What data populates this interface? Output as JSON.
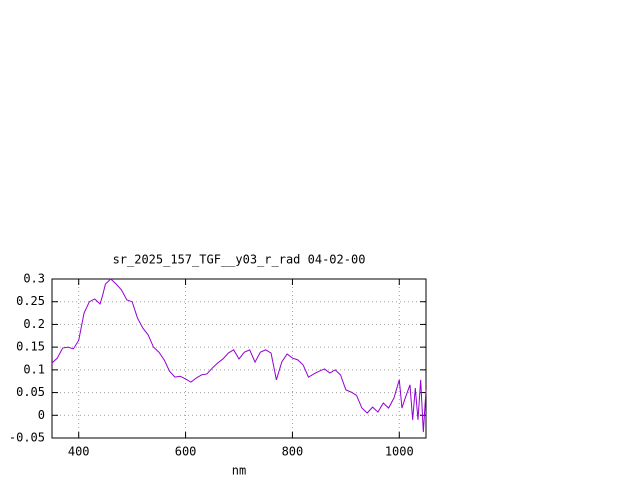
{
  "chart_data": {
    "type": "line",
    "title": "sr_2025_157_TGF__y03_r_rad 04-02-00",
    "x_label": "nm",
    "x": [
      350,
      360,
      370,
      380,
      390,
      400,
      410,
      420,
      430,
      440,
      445,
      450,
      460,
      470,
      480,
      490,
      500,
      510,
      520,
      530,
      540,
      550,
      560,
      570,
      580,
      590,
      600,
      610,
      620,
      630,
      640,
      650,
      660,
      670,
      680,
      690,
      700,
      710,
      720,
      730,
      740,
      750,
      760,
      770,
      780,
      790,
      800,
      810,
      820,
      830,
      840,
      850,
      860,
      870,
      880,
      890,
      900,
      910,
      920,
      930,
      940,
      950,
      960,
      970,
      980,
      990,
      1000,
      1005,
      1010,
      1020,
      1025,
      1030,
      1035,
      1040,
      1045,
      1050
    ],
    "series": [
      {
        "color": "#9400d3",
        "values": [
          0.115,
          0.126,
          0.148,
          0.15,
          0.146,
          0.165,
          0.225,
          0.25,
          0.256,
          0.245,
          0.265,
          0.289,
          0.3,
          0.289,
          0.276,
          0.254,
          0.25,
          0.214,
          0.192,
          0.177,
          0.15,
          0.139,
          0.122,
          0.097,
          0.084,
          0.086,
          0.08,
          0.073,
          0.082,
          0.089,
          0.091,
          0.104,
          0.115,
          0.124,
          0.137,
          0.144,
          0.124,
          0.139,
          0.144,
          0.117,
          0.139,
          0.144,
          0.137,
          0.078,
          0.117,
          0.135,
          0.126,
          0.122,
          0.111,
          0.084,
          0.091,
          0.097,
          0.102,
          0.093,
          0.1,
          0.089,
          0.056,
          0.051,
          0.044,
          0.016,
          0.005,
          0.018,
          0.007,
          0.027,
          0.016,
          0.038,
          0.078,
          0.016,
          0.034,
          0.067,
          -0.01,
          0.06,
          -0.01,
          0.078,
          -0.037,
          0.056
        ]
      }
    ],
    "xlim": [
      350,
      1050
    ],
    "xticks": [
      400,
      600,
      800,
      1000
    ],
    "ylim": [
      -0.05,
      0.3
    ],
    "yticks": [
      0.3,
      0.25,
      0.2,
      0.15,
      0.1,
      0.05,
      0,
      -0.05
    ],
    "grid": true
  }
}
